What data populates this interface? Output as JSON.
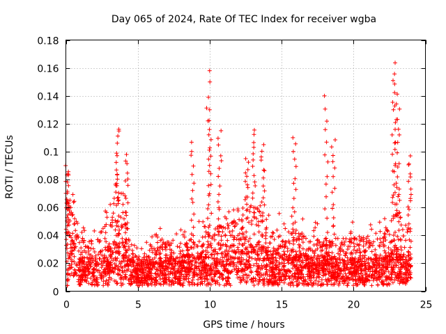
{
  "chart_data": {
    "type": "scatter",
    "title": "Day 065 of 2024, Rate Of TEC Index for receiver wgba",
    "xlabel": "GPS time / hours",
    "ylabel": "ROTI / TECUs",
    "xlim": [
      0,
      25
    ],
    "ylim": [
      0,
      0.18
    ],
    "x_ticks": [
      0,
      5,
      10,
      15,
      20,
      25
    ],
    "x_tick_labels": [
      "0",
      "5",
      "10",
      "15",
      "20",
      "25"
    ],
    "y_ticks": [
      0,
      0.02,
      0.04,
      0.06,
      0.08,
      0.1,
      0.12,
      0.14,
      0.16,
      0.18
    ],
    "y_tick_labels": [
      "0",
      "0.02",
      "0.04",
      "0.06",
      "0.08",
      "0.1",
      "0.12",
      "0.14",
      "0.16",
      "0.18"
    ],
    "grid": true,
    "marker": "+",
    "color": "#ff0000",
    "series": [
      {
        "name": "ROTI",
        "envelope": [
          {
            "x": 0.0,
            "base": 0.045,
            "peak": 0.088
          },
          {
            "x": 0.5,
            "base": 0.025,
            "peak": 0.07
          },
          {
            "x": 1.0,
            "base": 0.012,
            "peak": 0.05
          },
          {
            "x": 1.5,
            "base": 0.012,
            "peak": 0.045
          },
          {
            "x": 2.0,
            "base": 0.015,
            "peak": 0.045
          },
          {
            "x": 2.5,
            "base": 0.018,
            "peak": 0.055
          },
          {
            "x": 3.0,
            "base": 0.022,
            "peak": 0.065
          },
          {
            "x": 3.5,
            "base": 0.025,
            "peak": 0.09
          },
          {
            "x": 4.0,
            "base": 0.025,
            "peak": 0.08
          },
          {
            "x": 4.5,
            "base": 0.012,
            "peak": 0.045
          },
          {
            "x": 5.0,
            "base": 0.008,
            "peak": 0.03
          },
          {
            "x": 5.5,
            "base": 0.01,
            "peak": 0.035
          },
          {
            "x": 6.0,
            "base": 0.012,
            "peak": 0.045
          },
          {
            "x": 7.0,
            "base": 0.012,
            "peak": 0.045
          },
          {
            "x": 8.0,
            "base": 0.014,
            "peak": 0.045
          },
          {
            "x": 9.0,
            "base": 0.015,
            "peak": 0.05
          },
          {
            "x": 10.0,
            "base": 0.018,
            "peak": 0.06
          },
          {
            "x": 11.0,
            "base": 0.02,
            "peak": 0.06
          },
          {
            "x": 12.0,
            "base": 0.022,
            "peak": 0.065
          },
          {
            "x": 12.5,
            "base": 0.022,
            "peak": 0.075
          },
          {
            "x": 13.0,
            "base": 0.022,
            "peak": 0.08
          },
          {
            "x": 13.5,
            "base": 0.022,
            "peak": 0.08
          },
          {
            "x": 14.0,
            "base": 0.018,
            "peak": 0.065
          },
          {
            "x": 15.0,
            "base": 0.015,
            "peak": 0.055
          },
          {
            "x": 16.0,
            "base": 0.015,
            "peak": 0.055
          },
          {
            "x": 17.0,
            "base": 0.014,
            "peak": 0.05
          },
          {
            "x": 18.0,
            "base": 0.014,
            "peak": 0.05
          },
          {
            "x": 19.0,
            "base": 0.012,
            "peak": 0.048
          },
          {
            "x": 20.0,
            "base": 0.012,
            "peak": 0.05
          },
          {
            "x": 21.0,
            "base": 0.012,
            "peak": 0.05
          },
          {
            "x": 22.0,
            "base": 0.012,
            "peak": 0.05
          },
          {
            "x": 22.5,
            "base": 0.015,
            "peak": 0.06
          },
          {
            "x": 23.0,
            "base": 0.02,
            "peak": 0.09
          },
          {
            "x": 23.5,
            "base": 0.012,
            "peak": 0.05
          },
          {
            "x": 24.0,
            "base": 0.015,
            "peak": 0.07
          }
        ],
        "spikes": [
          {
            "x": 0.1,
            "ymax": 0.09
          },
          {
            "x": 3.6,
            "ymax": 0.118
          },
          {
            "x": 4.2,
            "ymax": 0.098
          },
          {
            "x": 8.8,
            "ymax": 0.107
          },
          {
            "x": 9.9,
            "ymax": 0.158
          },
          {
            "x": 10.0,
            "ymax": 0.13
          },
          {
            "x": 10.7,
            "ymax": 0.115
          },
          {
            "x": 12.6,
            "ymax": 0.095
          },
          {
            "x": 13.1,
            "ymax": 0.117
          },
          {
            "x": 13.7,
            "ymax": 0.105
          },
          {
            "x": 15.9,
            "ymax": 0.11
          },
          {
            "x": 18.1,
            "ymax": 0.14
          },
          {
            "x": 18.6,
            "ymax": 0.11
          },
          {
            "x": 22.8,
            "ymax": 0.151
          },
          {
            "x": 22.95,
            "ymax": 0.164
          },
          {
            "x": 23.1,
            "ymax": 0.135
          },
          {
            "x": 23.9,
            "ymax": 0.097
          }
        ],
        "n_points": 3200
      }
    ]
  }
}
